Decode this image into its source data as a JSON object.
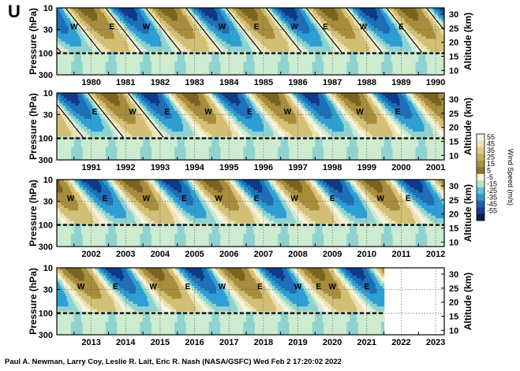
{
  "title": "U",
  "credit": "Paul A. Newman, Larry Coy, Leslie R. Lait, Eric R. Nash (NASA/GSFC) Wed Feb  2 17:20:02 2022",
  "colors": {
    "west_strong": "#7a6422",
    "west_mid": "#a88d3c",
    "west_light": "#d3bf75",
    "west_pale": "#ece1ad",
    "calm": "#f6f3e0",
    "east_pale": "#cdebcf",
    "east_light": "#8fd3d0",
    "east_mid": "#2e9fd4",
    "east_strong": "#1f6fb8",
    "east_deep": "#0f3a88",
    "black": "#000000"
  },
  "chart_data": [
    {
      "type": "heatmap",
      "variable": "U",
      "ylabel": "Pressure (hPa)",
      "y2label": "Altitude (km)",
      "yticks": [
        "10",
        "30",
        "100",
        "300"
      ],
      "y2ticks": [
        "30",
        "25",
        "20",
        "15",
        "10"
      ],
      "xticks": [
        "1980",
        "1981",
        "1982",
        "1983",
        "1984",
        "1985",
        "1986",
        "1987",
        "1988",
        "1989",
        "1990"
      ],
      "xlim": [
        1979.5,
        1990.75
      ],
      "phase_labels": [
        {
          "text": "W",
          "x": 1980.0,
          "p": 25
        },
        {
          "text": "E",
          "x": 1981.1,
          "p": 25
        },
        {
          "text": "W",
          "x": 1982.1,
          "p": 25
        },
        {
          "text": "W",
          "x": 1984.3,
          "p": 25
        },
        {
          "text": "E",
          "x": 1985.3,
          "p": 25
        },
        {
          "text": "W",
          "x": 1986.4,
          "p": 25
        },
        {
          "text": "E",
          "x": 1987.3,
          "p": 25
        },
        {
          "text": "W",
          "x": 1988.4,
          "p": 25
        },
        {
          "text": "E",
          "x": 1989.5,
          "p": 25
        }
      ]
    },
    {
      "type": "heatmap",
      "variable": "U",
      "ylabel": "Pressure (hPa)",
      "y2label": "Altitude (km)",
      "yticks": [
        "10",
        "30",
        "100",
        "300"
      ],
      "y2ticks": [
        "30",
        "25",
        "20",
        "15",
        "10"
      ],
      "xticks": [
        "1991",
        "1992",
        "1993",
        "1994",
        "1995",
        "1996",
        "1997",
        "1998",
        "1999",
        "2000",
        "2001"
      ],
      "xlim": [
        1990.5,
        2001.75
      ],
      "phase_labels": [
        {
          "text": "E",
          "x": 1991.6,
          "p": 25
        },
        {
          "text": "W",
          "x": 1992.7,
          "p": 25
        },
        {
          "text": "E",
          "x": 1993.7,
          "p": 25
        },
        {
          "text": "W",
          "x": 1994.9,
          "p": 25
        },
        {
          "text": "E",
          "x": 1996.1,
          "p": 25
        },
        {
          "text": "W",
          "x": 1997.2,
          "p": 25
        },
        {
          "text": "W",
          "x": 1999.3,
          "p": 25
        },
        {
          "text": "E",
          "x": 2000.4,
          "p": 25
        }
      ]
    },
    {
      "type": "heatmap",
      "variable": "U",
      "ylabel": "Pressure (hPa)",
      "y2label": "Altitude (km)",
      "yticks": [
        "10",
        "30",
        "100",
        "300"
      ],
      "y2ticks": [
        "30",
        "25",
        "20",
        "15",
        "10"
      ],
      "xticks": [
        "2002",
        "2003",
        "2004",
        "2005",
        "2006",
        "2007",
        "2008",
        "2009",
        "2010",
        "2011",
        "2012"
      ],
      "xlim": [
        2001.5,
        2012.75
      ],
      "phase_labels": [
        {
          "text": "W",
          "x": 2001.9,
          "p": 25
        },
        {
          "text": "E",
          "x": 2002.9,
          "p": 25
        },
        {
          "text": "W",
          "x": 2004.1,
          "p": 25
        },
        {
          "text": "E",
          "x": 2005.2,
          "p": 25
        },
        {
          "text": "W",
          "x": 2006.2,
          "p": 25
        },
        {
          "text": "E",
          "x": 2007.3,
          "p": 25
        },
        {
          "text": "W",
          "x": 2008.4,
          "p": 25
        },
        {
          "text": "E",
          "x": 2009.5,
          "p": 25
        },
        {
          "text": "W",
          "x": 2010.9,
          "p": 25
        },
        {
          "text": "E",
          "x": 2011.7,
          "p": 25
        }
      ]
    },
    {
      "type": "heatmap",
      "variable": "U",
      "ylabel": "Pressure (hPa)",
      "y2label": "Altitude (km)",
      "yticks": [
        "10",
        "30",
        "100",
        "300"
      ],
      "y2ticks": [
        "30",
        "25",
        "20",
        "15",
        "10"
      ],
      "xticks": [
        "2013",
        "2014",
        "2015",
        "2016",
        "2017",
        "2018",
        "2019",
        "2020",
        "2021",
        "2022",
        "2023"
      ],
      "xlim": [
        2012.5,
        2023.75
      ],
      "data_end": 2022.0,
      "phase_labels": [
        {
          "text": "W",
          "x": 2013.2,
          "p": 25
        },
        {
          "text": "E",
          "x": 2014.2,
          "p": 25
        },
        {
          "text": "W",
          "x": 2015.3,
          "p": 25
        },
        {
          "text": "E",
          "x": 2016.3,
          "p": 25
        },
        {
          "text": "W",
          "x": 2017.3,
          "p": 25
        },
        {
          "text": "E",
          "x": 2018.4,
          "p": 25
        },
        {
          "text": "W",
          "x": 2019.5,
          "p": 25
        },
        {
          "text": "E",
          "x": 2020.1,
          "p": 25
        },
        {
          "text": "W",
          "x": 2020.5,
          "p": 25
        },
        {
          "text": "E",
          "x": 2021.5,
          "p": 25
        }
      ]
    }
  ],
  "colorbar": {
    "label": "Wind Speed (m/s)",
    "ticks": [
      "55",
      "45",
      "35",
      "25",
      "15",
      "5",
      "-5",
      "-15",
      "-25",
      "-35",
      "-45",
      "-55"
    ],
    "colors": [
      "#f7f5e8",
      "#ede4b3",
      "#ddcb86",
      "#c7ae5c",
      "#ad923f",
      "#8c742a",
      "#f4f1da",
      "#b5e3c7",
      "#5fc2c8",
      "#2c98cf",
      "#1f62b0",
      "#123e8c",
      "#061b55"
    ]
  }
}
